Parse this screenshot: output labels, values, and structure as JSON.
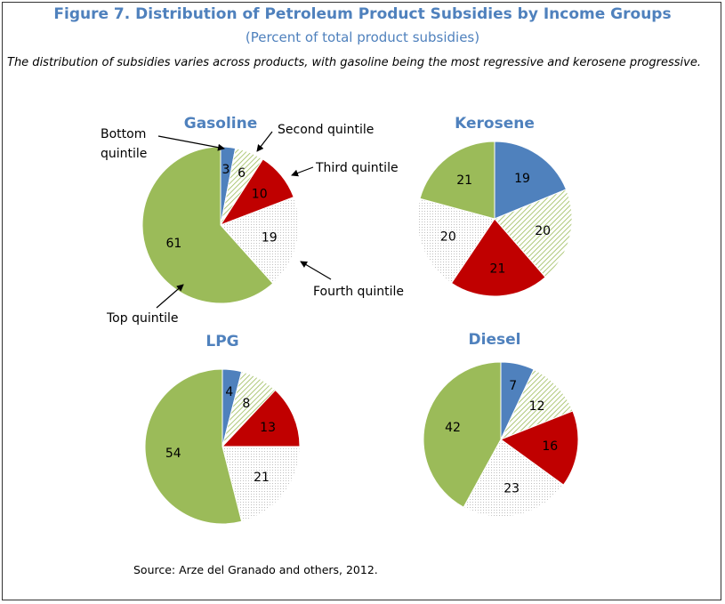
{
  "header": {
    "title": "Figure 7. Distribution of Petroleum Product Subsidies by Income Groups",
    "subtitle": "(Percent of total product subsidies)",
    "caption": "The distribution of subsidies varies across products, with gasoline being the most regressive and kerosene progressive."
  },
  "source": "Source: Arze del Granado and others, 2012.",
  "colors": {
    "bottom": "#4f81bd",
    "second": "#9bbb59",
    "third": "#c00000",
    "fourth": "#bfbfbf",
    "top": "#9bbb59",
    "title": "#4f81bd"
  },
  "chart_data": [
    {
      "type": "pie",
      "title": "Gasoline",
      "categories": [
        "Bottom quintile",
        "Second quintile",
        "Third quintile",
        "Fourth quintile",
        "Top quintile"
      ],
      "values": [
        3,
        6,
        10,
        19,
        61
      ],
      "annotations": [
        "Bottom quintile",
        "Second quintile",
        "Third quintile",
        "Fourth quintile",
        "Top quintile"
      ]
    },
    {
      "type": "pie",
      "title": "Kerosene",
      "categories": [
        "Bottom quintile",
        "Second quintile",
        "Third quintile",
        "Fourth quintile",
        "Top quintile"
      ],
      "values": [
        19,
        20,
        21,
        20,
        21
      ]
    },
    {
      "type": "pie",
      "title": "LPG",
      "categories": [
        "Bottom quintile",
        "Second quintile",
        "Third quintile",
        "Fourth quintile",
        "Top quintile"
      ],
      "values": [
        4,
        8,
        13,
        21,
        54
      ]
    },
    {
      "type": "pie",
      "title": "Diesel",
      "categories": [
        "Bottom quintile",
        "Second quintile",
        "Third quintile",
        "Fourth quintile",
        "Top quintile"
      ],
      "values": [
        7,
        12,
        16,
        23,
        42
      ]
    }
  ],
  "annotation_labels": {
    "bottom_line1": "Bottom",
    "bottom_line2": "quintile",
    "second": "Second quintile",
    "third": "Third quintile",
    "fourth": "Fourth quintile",
    "top": "Top quintile"
  }
}
